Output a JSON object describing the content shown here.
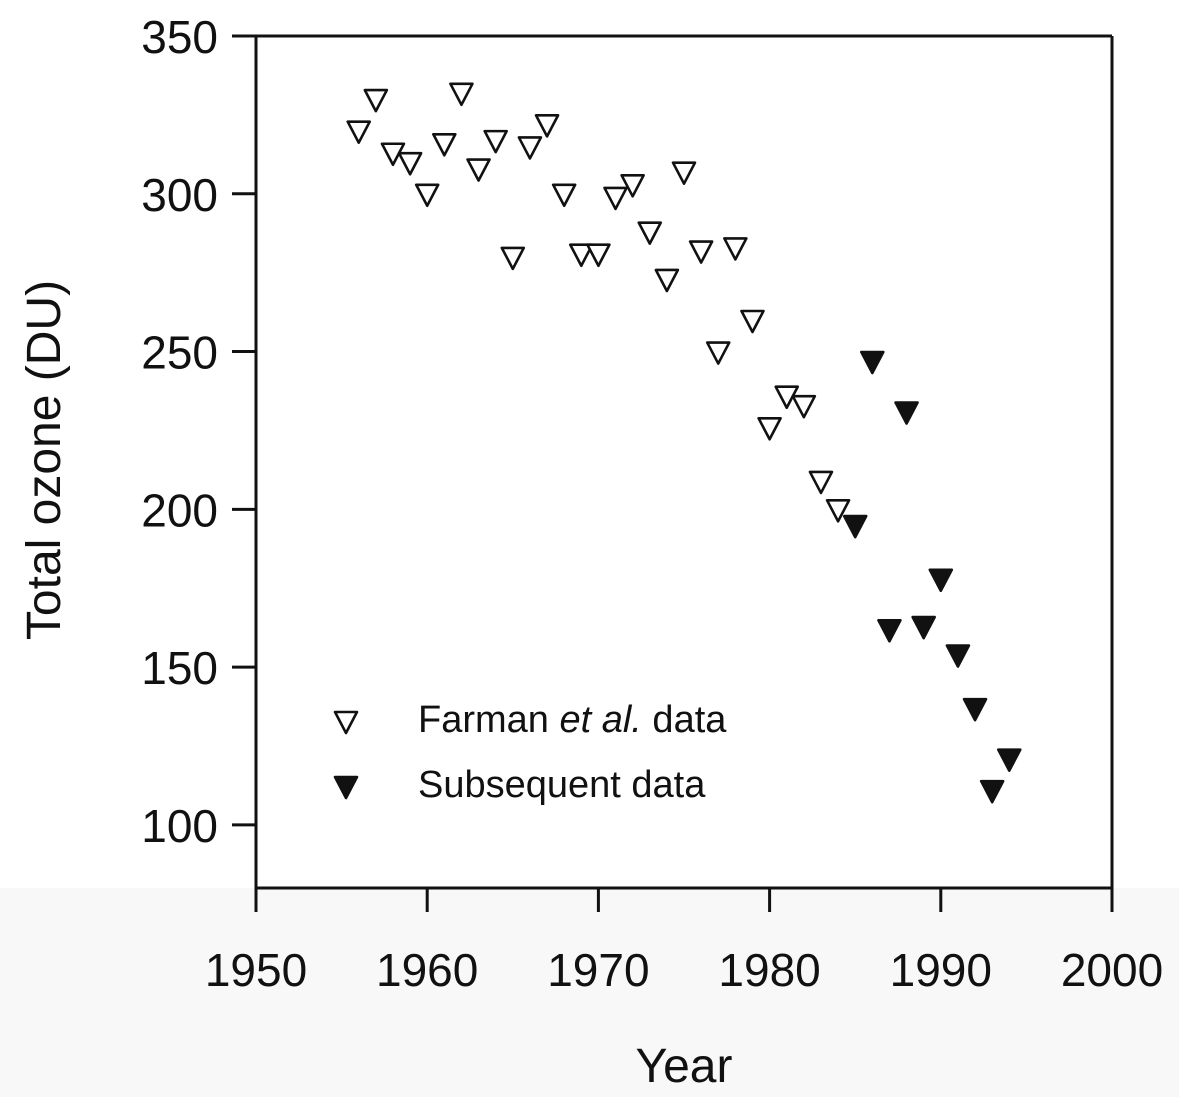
{
  "chart_data": {
    "type": "scatter",
    "title": "",
    "xlabel": "Year",
    "ylabel": "Total ozone (DU)",
    "xlim": [
      1950,
      2000
    ],
    "ylim": [
      80,
      350
    ],
    "x_ticks": [
      1950,
      1960,
      1970,
      1980,
      1990,
      2000
    ],
    "y_ticks": [
      100,
      150,
      200,
      250,
      300,
      350
    ],
    "grid": false,
    "legend": {
      "placement": "bottom-left",
      "entries": [
        {
          "marker": "open-down-triangle",
          "text_prefix": "Farman ",
          "text_italic": "et al.",
          "text_suffix": " data"
        },
        {
          "marker": "filled-down-triangle",
          "text": "Subsequent data"
        }
      ]
    },
    "series": [
      {
        "marker": "open-down-triangle",
        "color": "#111111",
        "points": [
          [
            1956,
            320
          ],
          [
            1957,
            330
          ],
          [
            1958,
            313
          ],
          [
            1959,
            310
          ],
          [
            1960,
            300
          ],
          [
            1961,
            316
          ],
          [
            1962,
            332
          ],
          [
            1963,
            308
          ],
          [
            1964,
            317
          ],
          [
            1965,
            280
          ],
          [
            1966,
            315
          ],
          [
            1967,
            322
          ],
          [
            1968,
            300
          ],
          [
            1969,
            281
          ],
          [
            1970,
            281
          ],
          [
            1971,
            299
          ],
          [
            1972,
            303
          ],
          [
            1973,
            288
          ],
          [
            1974,
            273
          ],
          [
            1975,
            307
          ],
          [
            1976,
            282
          ],
          [
            1977,
            250
          ],
          [
            1978,
            283
          ],
          [
            1979,
            260
          ],
          [
            1980,
            226
          ],
          [
            1981,
            236
          ],
          [
            1982,
            233
          ],
          [
            1983,
            209
          ],
          [
            1984,
            200
          ]
        ]
      },
      {
        "marker": "filled-down-triangle",
        "color": "#111111",
        "points": [
          [
            1985,
            195
          ],
          [
            1986,
            247
          ],
          [
            1987,
            162
          ],
          [
            1988,
            231
          ],
          [
            1989,
            163
          ],
          [
            1990,
            178
          ],
          [
            1991,
            154
          ],
          [
            1992,
            137
          ],
          [
            1993,
            111
          ],
          [
            1994,
            121
          ]
        ]
      }
    ]
  }
}
